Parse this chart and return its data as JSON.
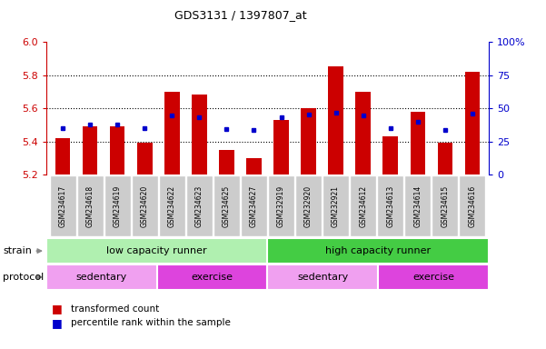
{
  "title": "GDS3131 / 1397807_at",
  "samples": [
    "GSM234617",
    "GSM234618",
    "GSM234619",
    "GSM234620",
    "GSM234622",
    "GSM234623",
    "GSM234625",
    "GSM234627",
    "GSM232919",
    "GSM232920",
    "GSM232921",
    "GSM234612",
    "GSM234613",
    "GSM234614",
    "GSM234615",
    "GSM234616"
  ],
  "bar_values": [
    5.42,
    5.49,
    5.49,
    5.39,
    5.7,
    5.68,
    5.35,
    5.3,
    5.53,
    5.6,
    5.85,
    5.7,
    5.43,
    5.58,
    5.39,
    5.82
  ],
  "percentile_values": [
    5.48,
    5.5,
    5.5,
    5.48,
    5.555,
    5.548,
    5.475,
    5.47,
    5.545,
    5.56,
    5.572,
    5.555,
    5.478,
    5.52,
    5.47,
    5.57
  ],
  "ymin": 5.2,
  "ymax": 6.0,
  "yticks": [
    5.2,
    5.4,
    5.6,
    5.8,
    6.0
  ],
  "y2ticks": [
    0,
    25,
    50,
    75,
    100
  ],
  "y2labels": [
    "0",
    "25",
    "50",
    "75",
    "100%"
  ],
  "bar_color": "#cc0000",
  "dot_color": "#0000cc",
  "bar_width": 0.55,
  "strain_groups": [
    {
      "label": "low capacity runner",
      "start": 0,
      "end": 8,
      "color": "#b0f0b0"
    },
    {
      "label": "high capacity runner",
      "start": 8,
      "end": 16,
      "color": "#44cc44"
    }
  ],
  "protocol_groups": [
    {
      "label": "sedentary",
      "start": 0,
      "end": 4,
      "color": "#f0a0f0"
    },
    {
      "label": "exercise",
      "start": 4,
      "end": 8,
      "color": "#dd44dd"
    },
    {
      "label": "sedentary",
      "start": 8,
      "end": 12,
      "color": "#f0a0f0"
    },
    {
      "label": "exercise",
      "start": 12,
      "end": 16,
      "color": "#dd44dd"
    }
  ],
  "strain_label": "strain",
  "protocol_label": "protocol",
  "legend_red_label": "transformed count",
  "legend_blue_label": "percentile rank within the sample",
  "axis_color_left": "#cc0000",
  "axis_color_right": "#0000cc",
  "background_color": "#ffffff",
  "plot_bg_color": "#ffffff",
  "tick_bg_color": "#cccccc",
  "grid_color": "#000000",
  "grid_style": "dotted"
}
